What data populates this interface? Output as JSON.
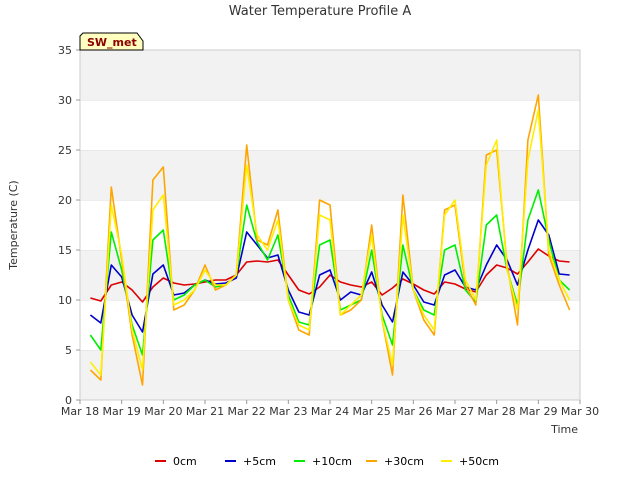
{
  "chart_data": {
    "type": "line",
    "title": "Water Temperature Profile A",
    "xlabel": "Time",
    "ylabel": "Temperature (C)",
    "annotation": "SW_met",
    "xlim": [
      0,
      12
    ],
    "ylim": [
      0,
      35
    ],
    "x_ticks": [
      "Mar 18",
      "Mar 19",
      "Mar 20",
      "Mar 21",
      "Mar 22",
      "Mar 23",
      "Mar 24",
      "Mar 25",
      "Mar 26",
      "Mar 27",
      "Mar 28",
      "Mar 29",
      "Mar 30"
    ],
    "y_ticks": [
      0,
      5,
      10,
      15,
      20,
      25,
      30,
      35
    ],
    "grid": "horizontal bands",
    "legend_position": "bottom",
    "x": [
      "Mar 18 06:00",
      "Mar 18 12:00",
      "Mar 18 18:00",
      "Mar 19 00:00",
      "Mar 19 06:00",
      "Mar 19 12:00",
      "Mar 19 18:00",
      "Mar 20 00:00",
      "Mar 20 06:00",
      "Mar 20 12:00",
      "Mar 20 18:00",
      "Mar 21 00:00",
      "Mar 21 06:00",
      "Mar 21 12:00",
      "Mar 21 18:00",
      "Mar 22 00:00",
      "Mar 22 06:00",
      "Mar 22 12:00",
      "Mar 22 18:00",
      "Mar 23 00:00",
      "Mar 23 06:00",
      "Mar 23 12:00",
      "Mar 23 18:00",
      "Mar 24 00:00",
      "Mar 24 06:00",
      "Mar 24 12:00",
      "Mar 24 18:00",
      "Mar 25 00:00",
      "Mar 25 06:00",
      "Mar 25 12:00",
      "Mar 25 18:00",
      "Mar 26 00:00",
      "Mar 26 06:00",
      "Mar 26 12:00",
      "Mar 26 18:00",
      "Mar 27 00:00",
      "Mar 27 06:00",
      "Mar 27 12:00",
      "Mar 27 18:00",
      "Mar 28 00:00",
      "Mar 28 06:00",
      "Mar 28 12:00",
      "Mar 28 18:00",
      "Mar 29 00:00",
      "Mar 29 06:00",
      "Mar 29 12:00",
      "Mar 29 18:00"
    ],
    "series": [
      {
        "name": "0cm",
        "color": "#dd0000",
        "values": [
          10.2,
          9.9,
          11.5,
          11.8,
          11.0,
          9.8,
          11.3,
          12.2,
          11.7,
          11.5,
          11.6,
          11.8,
          12.0,
          12.0,
          12.5,
          13.8,
          13.9,
          13.8,
          14.0,
          12.5,
          11.0,
          10.6,
          11.3,
          12.5,
          11.8,
          11.5,
          11.3,
          11.8,
          10.5,
          11.2,
          12.1,
          11.6,
          11.0,
          10.6,
          11.8,
          11.6,
          11.1,
          10.8,
          12.5,
          13.5,
          13.2,
          12.6,
          13.8,
          15.1,
          14.4,
          13.9,
          13.8
        ]
      },
      {
        "name": "+5cm",
        "color": "#0000cc",
        "values": [
          8.5,
          7.7,
          13.5,
          12.3,
          8.5,
          6.8,
          12.6,
          13.5,
          10.5,
          10.7,
          11.5,
          12.0,
          11.6,
          11.7,
          12.2,
          16.8,
          15.5,
          14.2,
          14.5,
          11.0,
          8.8,
          8.5,
          12.5,
          13.0,
          10.0,
          10.8,
          10.5,
          12.8,
          9.5,
          7.8,
          12.8,
          11.5,
          9.8,
          9.5,
          12.5,
          13.0,
          11.3,
          11.0,
          13.5,
          15.5,
          14.0,
          11.5,
          15.0,
          18.0,
          16.5,
          12.6,
          12.5
        ]
      },
      {
        "name": "+10cm",
        "color": "#00ee00",
        "values": [
          6.5,
          5.0,
          16.8,
          13.0,
          7.5,
          4.5,
          16.0,
          17.0,
          10.0,
          10.5,
          11.5,
          12.0,
          11.3,
          11.5,
          12.5,
          19.5,
          15.8,
          14.0,
          16.5,
          10.5,
          7.8,
          7.5,
          15.5,
          16.0,
          9.0,
          9.5,
          10.0,
          15.0,
          8.5,
          5.5,
          15.5,
          11.0,
          9.0,
          8.5,
          15.0,
          15.5,
          11.0,
          9.8,
          17.5,
          18.5,
          13.0,
          9.5,
          18.0,
          21.0,
          16.0,
          12.0,
          11.0
        ]
      },
      {
        "name": "+30cm",
        "color": "#ffa500",
        "values": [
          3.0,
          2.0,
          21.3,
          14.0,
          6.5,
          1.5,
          22.0,
          23.3,
          9.0,
          9.5,
          11.0,
          13.5,
          11.0,
          11.5,
          12.5,
          25.5,
          16.0,
          15.5,
          19.0,
          10.0,
          7.0,
          6.5,
          20.0,
          19.5,
          8.5,
          9.0,
          10.0,
          17.5,
          8.0,
          2.5,
          20.5,
          11.0,
          8.0,
          6.5,
          19.0,
          19.5,
          11.5,
          9.5,
          24.5,
          25.0,
          13.5,
          7.5,
          26.0,
          30.5,
          14.5,
          11.5,
          9.0
        ]
      },
      {
        "name": "+50cm",
        "color": "#ffee00",
        "values": [
          3.8,
          2.5,
          19.5,
          14.5,
          7.0,
          3.0,
          19.0,
          20.5,
          9.5,
          10.0,
          11.0,
          13.0,
          11.5,
          11.5,
          12.5,
          23.5,
          16.5,
          15.0,
          18.0,
          10.0,
          7.5,
          7.0,
          18.5,
          18.0,
          8.5,
          9.5,
          10.5,
          16.5,
          8.0,
          3.5,
          18.5,
          11.0,
          8.5,
          7.0,
          18.5,
          20.0,
          12.0,
          10.0,
          23.5,
          26.0,
          13.0,
          9.0,
          24.0,
          29.0,
          15.0,
          12.0,
          10.0
        ]
      }
    ]
  }
}
